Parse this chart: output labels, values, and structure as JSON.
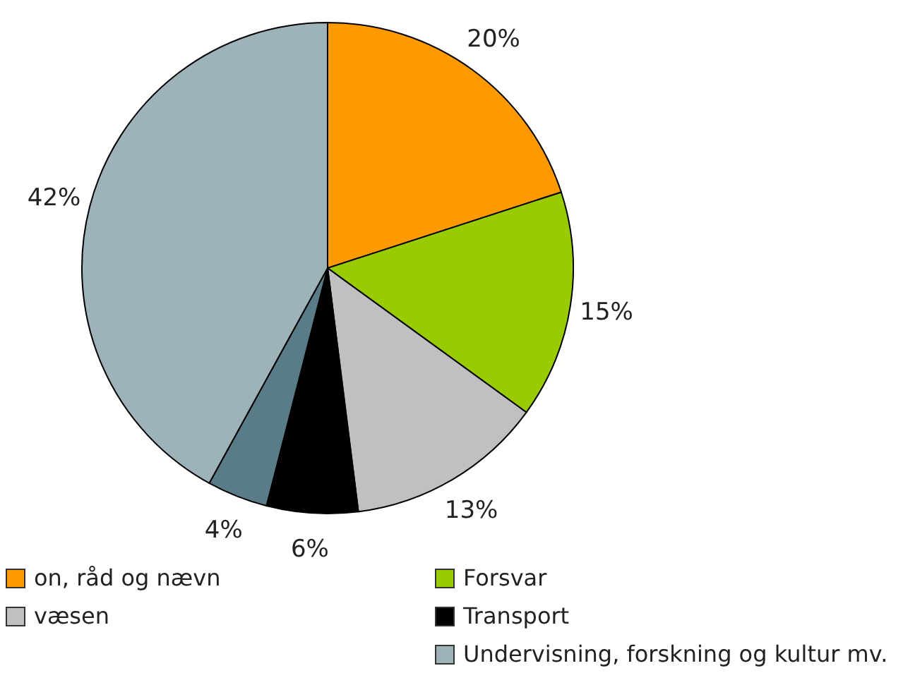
{
  "chart_data": {
    "type": "pie",
    "categories": [
      "on, råd og nævn",
      "Forsvar",
      "væsen",
      "Transport",
      null,
      "Undervisning, forskning og kultur mv."
    ],
    "values": [
      20,
      15,
      13,
      6,
      4,
      42
    ],
    "colors": [
      "#ff9900",
      "#99cc00",
      "#c0c0c0",
      "#000000",
      "#5a7b88",
      "#9db3b9"
    ],
    "value_labels": [
      "20%",
      "15%",
      "13%",
      "6%",
      "4%",
      "42%"
    ],
    "legend": "bottom"
  }
}
